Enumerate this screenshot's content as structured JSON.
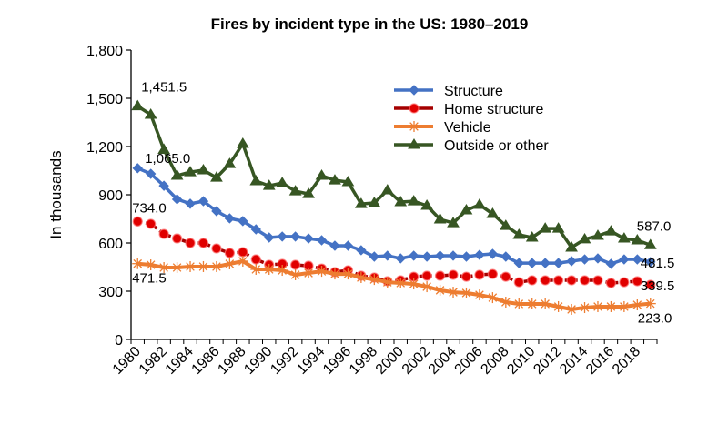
{
  "chart_data": {
    "type": "line",
    "title": "Fires by incident type in the US: 1980–2019",
    "xlabel": "",
    "ylabel": "In thousands",
    "ylim": [
      0,
      1800
    ],
    "yticks": [
      0,
      300,
      600,
      900,
      1200,
      1500,
      1800
    ],
    "ytick_labels": [
      "0",
      "300",
      "600",
      "900",
      "1,200",
      "1,500",
      "1,800"
    ],
    "grid": false,
    "legend_position": "top-center",
    "x": [
      1980,
      1981,
      1982,
      1983,
      1984,
      1985,
      1986,
      1987,
      1988,
      1989,
      1990,
      1991,
      1992,
      1993,
      1994,
      1995,
      1996,
      1997,
      1998,
      1999,
      2000,
      2001,
      2002,
      2003,
      2004,
      2005,
      2006,
      2007,
      2008,
      2009,
      2010,
      2011,
      2012,
      2013,
      2014,
      2015,
      2016,
      2017,
      2018,
      2019
    ],
    "xtick_labels": [
      "1980",
      "1982",
      "1984",
      "1986",
      "1988",
      "1990",
      "1992",
      "1994",
      "1996",
      "1998",
      "2000",
      "2002",
      "2004",
      "2006",
      "2008",
      "2010",
      "2012",
      "2014",
      "2016",
      "2018"
    ],
    "series": [
      {
        "name": "Structure",
        "color": "#4472C4",
        "marker": "diamond",
        "values": [
          1065.0,
          1030,
          956,
          872,
          844,
          860,
          798,
          753,
          736,
          685,
          634,
          640,
          640,
          628,
          617,
          583,
          583,
          555,
          515,
          521,
          504,
          521,
          515,
          521,
          521,
          515,
          526,
          532,
          515,
          475,
          475,
          475,
          475,
          487,
          498,
          504,
          470,
          498,
          498,
          481.5
        ]
      },
      {
        "name": "Home structure",
        "color": "#C00000",
        "marker": "circle",
        "values": [
          734.0,
          719,
          656,
          628,
          600,
          600,
          566,
          538,
          543,
          498,
          464,
          470,
          464,
          458,
          441,
          419,
          430,
          396,
          385,
          362,
          368,
          390,
          396,
          396,
          402,
          390,
          402,
          407,
          390,
          356,
          368,
          368,
          368,
          368,
          368,
          368,
          351,
          356,
          362,
          339.5
        ]
      },
      {
        "name": "Vehicle",
        "color": "#ED7D31",
        "marker": "asterisk",
        "values": [
          471.5,
          464,
          447,
          447,
          453,
          453,
          453,
          470,
          487,
          436,
          436,
          430,
          402,
          413,
          424,
          407,
          407,
          385,
          373,
          356,
          351,
          345,
          328,
          306,
          294,
          289,
          277,
          260,
          232,
          221,
          221,
          221,
          204,
          187,
          198,
          204,
          204,
          204,
          215,
          223.0
        ]
      },
      {
        "name": "Outside or other",
        "color": "#375623",
        "marker": "triangle",
        "values": [
          1451.5,
          1398,
          1180,
          1019,
          1041,
          1053,
          1007,
          1092,
          1217,
          985,
          956,
          973,
          922,
          905,
          1019,
          990,
          979,
          843,
          849,
          928,
          855,
          860,
          832,
          747,
          724,
          804,
          838,
          781,
          707,
          651,
          634,
          690,
          690,
          572,
          623,
          645,
          673,
          628,
          617,
          587.0
        ]
      }
    ],
    "annotations": [
      {
        "series": "Outside or other",
        "year": 1980,
        "text": "1,451.5"
      },
      {
        "series": "Structure",
        "year": 1980,
        "text": "1,065.0"
      },
      {
        "series": "Home structure",
        "year": 1980,
        "text": "734.0"
      },
      {
        "series": "Vehicle",
        "year": 1980,
        "text": "471.5"
      },
      {
        "series": "Outside or other",
        "year": 2019,
        "text": "587.0"
      },
      {
        "series": "Structure",
        "year": 2019,
        "text": "481.5"
      },
      {
        "series": "Home structure",
        "year": 2019,
        "text": "339.5"
      },
      {
        "series": "Vehicle",
        "year": 2019,
        "text": "223.0"
      }
    ]
  }
}
